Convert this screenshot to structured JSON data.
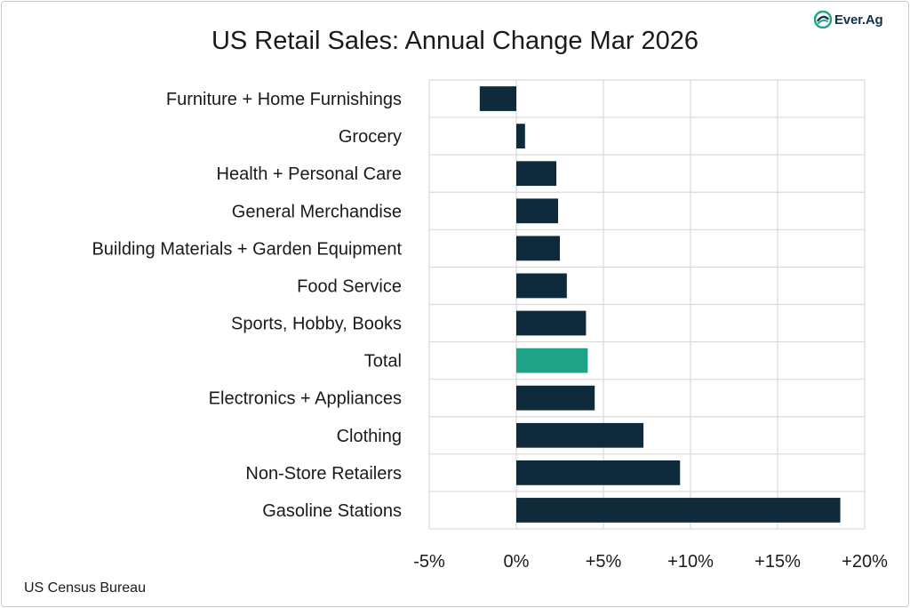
{
  "logo": {
    "text": "Ever.Ag",
    "icon": "ever-ag-logo-icon"
  },
  "source": "US Census Bureau",
  "colors": {
    "bar": "#0e2a3b",
    "highlight": "#1fa386",
    "grid": "#d9d9d9"
  },
  "chart_data": {
    "type": "bar",
    "orientation": "horizontal",
    "title": "US Retail Sales: Annual Change Mar 2026",
    "xlabel": "",
    "ylabel": "",
    "xlim": [
      -5,
      20
    ],
    "x_ticks": [
      -5,
      0,
      5,
      10,
      15,
      20
    ],
    "x_tick_labels": [
      "-5%",
      "0%",
      "+5%",
      "+10%",
      "+15%",
      "+20%"
    ],
    "grid": true,
    "highlight_category": "Total",
    "categories": [
      "Furniture + Home Furnishings",
      "Grocery",
      "Health + Personal Care",
      "General Merchandise",
      "Building Materials + Garden Equipment",
      "Food Service",
      "Sports, Hobby, Books",
      "Total",
      "Electronics + Appliances",
      "Clothing",
      "Non-Store Retailers",
      "Gasoline Stations"
    ],
    "values": [
      -2.1,
      0.5,
      2.3,
      2.4,
      2.5,
      2.9,
      4.0,
      4.1,
      4.5,
      7.3,
      9.4,
      18.6
    ]
  }
}
